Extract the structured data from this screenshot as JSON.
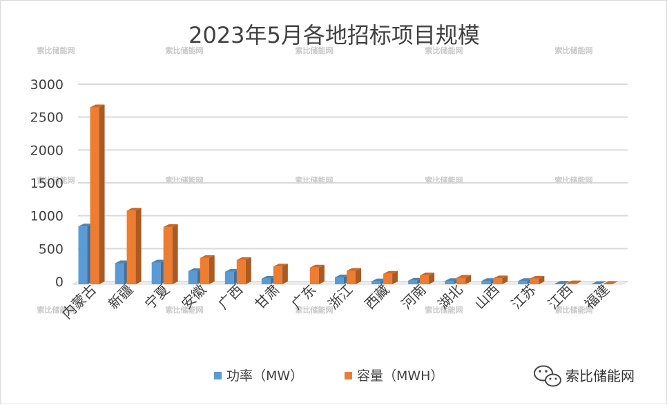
{
  "chart_data": {
    "type": "bar",
    "title": "2023年5月各地招标项目规模",
    "categories": [
      "内蒙古",
      "新疆",
      "宁夏",
      "安徽",
      "广西",
      "甘肃",
      "广东",
      "浙江",
      "西藏",
      "河南",
      "湖北",
      "山西",
      "江苏",
      "江西",
      "福建"
    ],
    "series": [
      {
        "name": "功率（MW）",
        "color": "#5b9bd5",
        "values": [
          880,
          320,
          330,
          200,
          190,
          85,
          0,
          105,
          45,
          55,
          50,
          50,
          50,
          8,
          3
        ]
      },
      {
        "name": "容量（MWH）",
        "color": "#ed7d31",
        "values": [
          2690,
          1120,
          870,
          400,
          370,
          270,
          255,
          205,
          160,
          135,
          100,
          90,
          85,
          15,
          5
        ]
      }
    ],
    "ylim": [
      0,
      3000
    ],
    "yticks": [
      0,
      500,
      1000,
      1500,
      2000,
      2500,
      3000
    ],
    "grid": true,
    "legend_position": "bottom"
  },
  "watermark": "索比储能网",
  "brand": {
    "name": "索比储能网",
    "icon": "wechat-icon"
  }
}
